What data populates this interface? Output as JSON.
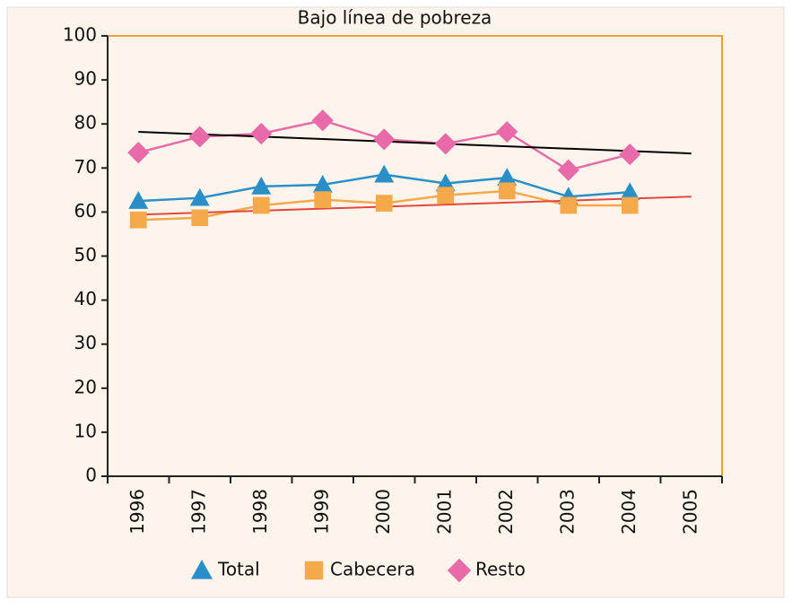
{
  "chart_data": {
    "type": "line",
    "title": "Bajo línea de pobreza",
    "categories": [
      "1996",
      "1997",
      "1998",
      "1999",
      "2000",
      "2001",
      "2002",
      "2003",
      "2004",
      "2005"
    ],
    "series": [
      {
        "name": "Total",
        "color": "#2a8fc8",
        "marker": "triangle",
        "values": [
          62.5,
          63.2,
          65.8,
          66.2,
          68.5,
          66.5,
          67.8,
          63.5,
          64.5,
          null
        ]
      },
      {
        "name": "Cabecera",
        "color": "#f5a94a",
        "marker": "square",
        "values": [
          58.2,
          58.7,
          61.5,
          62.8,
          62,
          63.8,
          64.8,
          61.5,
          61.5,
          null
        ]
      },
      {
        "name": "Resto",
        "color": "#e86aa8",
        "marker": "diamond",
        "values": [
          73.5,
          77.1,
          77.8,
          80.8,
          76.5,
          75.5,
          78.2,
          69.5,
          73.1,
          null
        ]
      }
    ],
    "trend_lines": [
      {
        "color": "#000000",
        "values": [
          78.2,
          73.3
        ]
      },
      {
        "color": "#e8453c",
        "values": [
          59.4,
          63.5
        ]
      }
    ],
    "ylim": [
      0,
      100
    ],
    "yticks": [
      0,
      10,
      20,
      30,
      40,
      50,
      60,
      70,
      80,
      90,
      100
    ],
    "legend": "bottom"
  }
}
